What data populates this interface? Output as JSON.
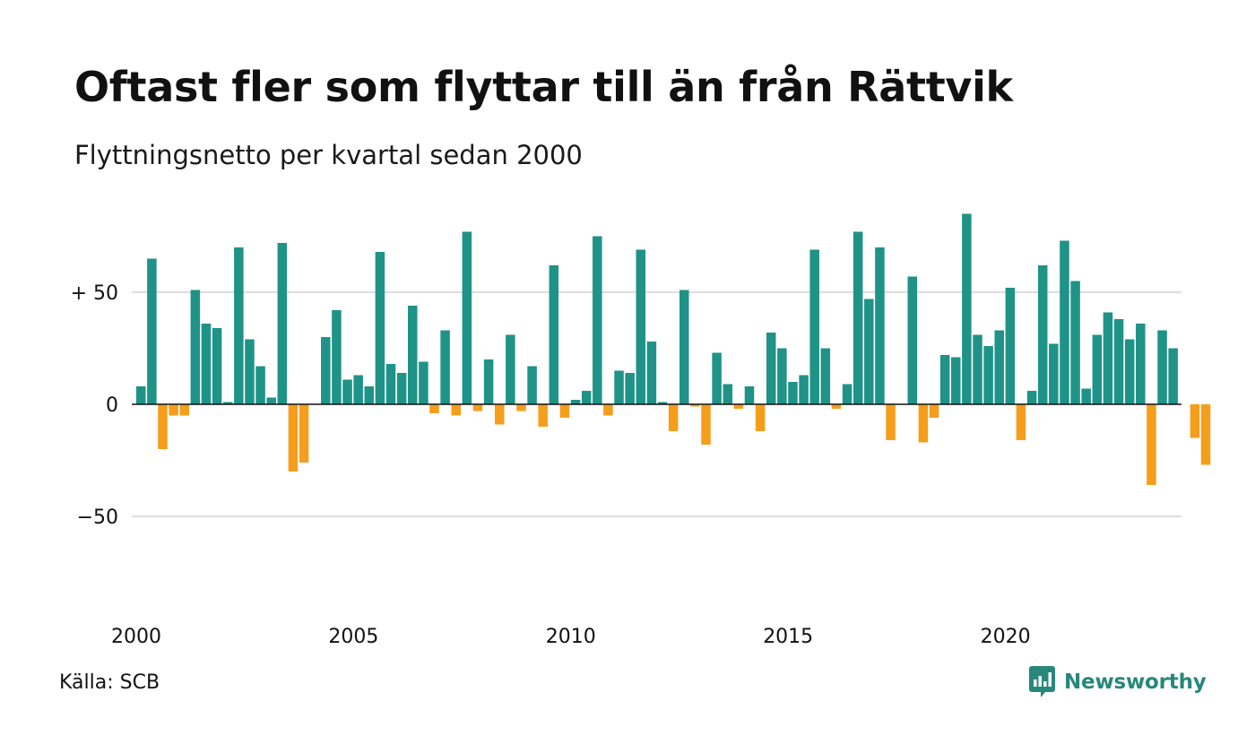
{
  "title": "Oftast fler som flyttar till än från Rättvik",
  "subtitle": "Flyttningsnetto per kvartal sedan 2000",
  "source": "Källa: SCB",
  "brand": "Newsworthy",
  "colors": {
    "positive": "#1f9387",
    "negative": "#f59e1b",
    "brand": "#27877b",
    "grid": "#dddddd",
    "axis": "#111111"
  },
  "chart_data": {
    "type": "bar",
    "title": "Oftast fler som flyttar till än från Rättvik",
    "subtitle": "Flyttningsnetto per kvartal sedan 2000",
    "xlabel": "",
    "ylabel": "",
    "ylim": [
      -80,
      90
    ],
    "x_range": [
      2000,
      2025
    ],
    "x_ticks": [
      {
        "value": 2000,
        "label": "2000"
      },
      {
        "value": 2005,
        "label": "2005"
      },
      {
        "value": 2010,
        "label": "2010"
      },
      {
        "value": 2015,
        "label": "2015"
      },
      {
        "value": 2020,
        "label": "2020"
      }
    ],
    "y_ticks": [
      {
        "value": 50,
        "label": "+ 50"
      },
      {
        "value": 0,
        "label": "0"
      },
      {
        "value": -50,
        "label": "−50"
      }
    ],
    "grid": true,
    "legend": "none",
    "categories": [
      "2000 Q1",
      "2000 Q2",
      "2000 Q3",
      "2000 Q4",
      "2001 Q1",
      "2001 Q2",
      "2001 Q3",
      "2001 Q4",
      "2002 Q1",
      "2002 Q2",
      "2002 Q3",
      "2002 Q4",
      "2003 Q1",
      "2003 Q2",
      "2003 Q3",
      "2003 Q4",
      "2004 Q1",
      "2004 Q2",
      "2004 Q3",
      "2004 Q4",
      "2005 Q1",
      "2005 Q2",
      "2005 Q3",
      "2005 Q4",
      "2006 Q1",
      "2006 Q2",
      "2006 Q3",
      "2006 Q4",
      "2007 Q1",
      "2007 Q2",
      "2007 Q3",
      "2007 Q4",
      "2008 Q1",
      "2008 Q2",
      "2008 Q3",
      "2008 Q4",
      "2009 Q1",
      "2009 Q2",
      "2009 Q3",
      "2009 Q4",
      "2010 Q1",
      "2010 Q2",
      "2010 Q3",
      "2010 Q4",
      "2011 Q1",
      "2011 Q2",
      "2011 Q3",
      "2011 Q4",
      "2012 Q1",
      "2012 Q2",
      "2012 Q3",
      "2012 Q4",
      "2013 Q1",
      "2013 Q2",
      "2013 Q3",
      "2013 Q4",
      "2014 Q1",
      "2014 Q2",
      "2014 Q3",
      "2014 Q4",
      "2015 Q1",
      "2015 Q2",
      "2015 Q3",
      "2015 Q4",
      "2016 Q1",
      "2016 Q2",
      "2016 Q3",
      "2016 Q4",
      "2017 Q1",
      "2017 Q2",
      "2017 Q3",
      "2017 Q4",
      "2018 Q1",
      "2018 Q2",
      "2018 Q3",
      "2018 Q4",
      "2019 Q1",
      "2019 Q2",
      "2019 Q3",
      "2019 Q4",
      "2020 Q1",
      "2020 Q2",
      "2020 Q3",
      "2020 Q4",
      "2021 Q1",
      "2021 Q2",
      "2021 Q3",
      "2021 Q4",
      "2022 Q1",
      "2022 Q2",
      "2022 Q3",
      "2022 Q4",
      "2023 Q1",
      "2023 Q2",
      "2023 Q3",
      "2023 Q4",
      "2024 Q1",
      "2024 Q2",
      "2024 Q3",
      "2024 Q4"
    ],
    "values": [
      8,
      65,
      -20,
      -5,
      -5,
      51,
      36,
      34,
      1,
      70,
      29,
      17,
      3,
      72,
      -30,
      -26,
      0,
      30,
      42,
      11,
      13,
      8,
      68,
      18,
      14,
      44,
      19,
      -4,
      33,
      -5,
      77,
      -3,
      20,
      -9,
      31,
      -3,
      17,
      -10,
      62,
      -6,
      2,
      6,
      75,
      -5,
      15,
      14,
      69,
      28,
      1,
      -12,
      51,
      -1,
      -18,
      23,
      9,
      -2,
      8,
      -12,
      32,
      25,
      10,
      13,
      69,
      25,
      -2,
      9,
      77,
      47,
      70,
      -16,
      0,
      57,
      -17,
      -6,
      22,
      21,
      85,
      31,
      26,
      33,
      52,
      -16,
      6,
      62,
      27,
      73,
      55,
      7,
      31,
      41,
      38,
      29,
      36,
      -36,
      33,
      25,
      0,
      -15,
      -27,
      0
    ]
  }
}
